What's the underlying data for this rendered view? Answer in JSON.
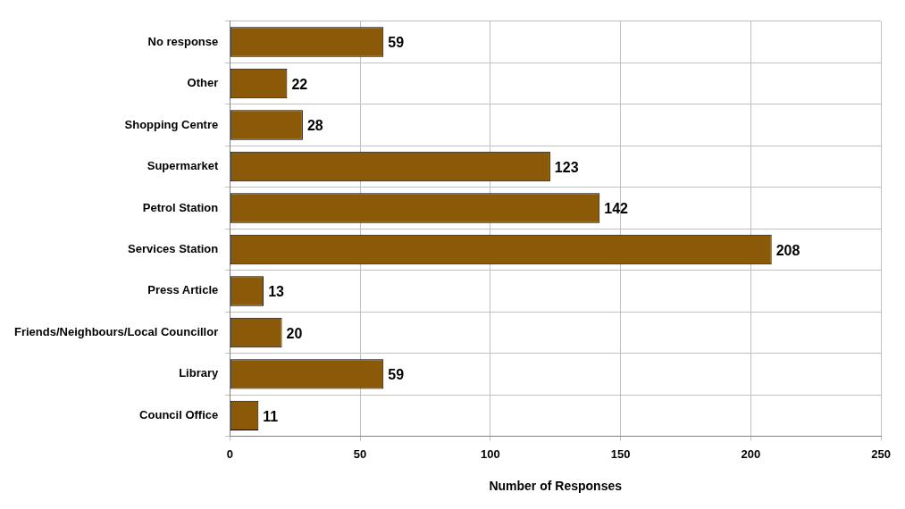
{
  "chart_data": {
    "type": "bar",
    "orientation": "horizontal",
    "xlabel": "Number of Responses",
    "categories": [
      "No response",
      "Other",
      "Shopping Centre",
      "Supermarket",
      "Petrol Station",
      "Services Station",
      "Press Article",
      "Friends/Neighbours/Local Councillor",
      "Library",
      "Council Office"
    ],
    "values": [
      59,
      22,
      28,
      123,
      142,
      208,
      13,
      20,
      59,
      11
    ],
    "color": "#8a5a08",
    "xlim": [
      0,
      250
    ],
    "xticks": [
      0,
      50,
      100,
      150,
      200,
      250
    ],
    "grid": true,
    "data_labels": true,
    "legend": false
  }
}
